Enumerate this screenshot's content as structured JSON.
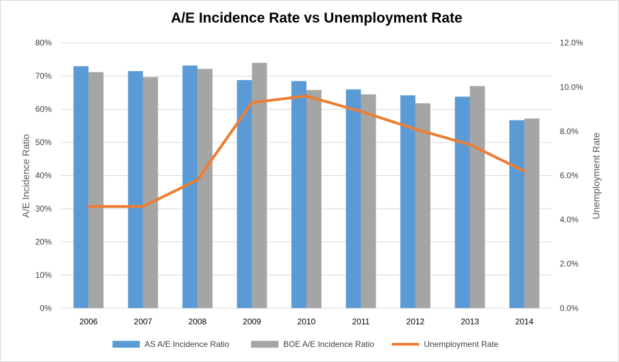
{
  "chart_data": {
    "type": "bar",
    "title": "A/E Incidence Rate vs Unemployment Rate",
    "categories": [
      "2006",
      "2007",
      "2008",
      "2009",
      "2010",
      "2011",
      "2012",
      "2013",
      "2014"
    ],
    "series": [
      {
        "name": "AS A/E Incidence Ratio",
        "type": "bar",
        "axis": "left",
        "color": "#5b9bd5",
        "values": [
          73,
          71.5,
          73.2,
          68.8,
          68.5,
          66,
          64.2,
          63.8,
          56.7
        ]
      },
      {
        "name": "BOE A/E Incidence Ratio",
        "type": "bar",
        "axis": "left",
        "color": "#a5a5a5",
        "values": [
          71.2,
          69.7,
          72.2,
          74,
          65.8,
          64.5,
          61.8,
          67,
          57.2
        ]
      },
      {
        "name": "Unemployment Rate",
        "type": "line",
        "axis": "right",
        "color": "#ed7d31",
        "values": [
          4.6,
          4.6,
          5.8,
          9.3,
          9.6,
          8.9,
          8.1,
          7.4,
          6.2
        ]
      }
    ],
    "ylabel": "A/E Incidence Ratio",
    "y2label": "Unemployment Rate",
    "ylim": [
      0,
      80
    ],
    "y2lim": [
      0,
      12
    ],
    "yticks": [
      "0%",
      "10%",
      "20%",
      "30%",
      "40%",
      "50%",
      "60%",
      "70%",
      "80%"
    ],
    "y2ticks": [
      "0.0%",
      "2.0%",
      "4.0%",
      "6.0%",
      "8.0%",
      "10.0%",
      "12.0%"
    ],
    "grid": true,
    "legend": "bottom"
  }
}
